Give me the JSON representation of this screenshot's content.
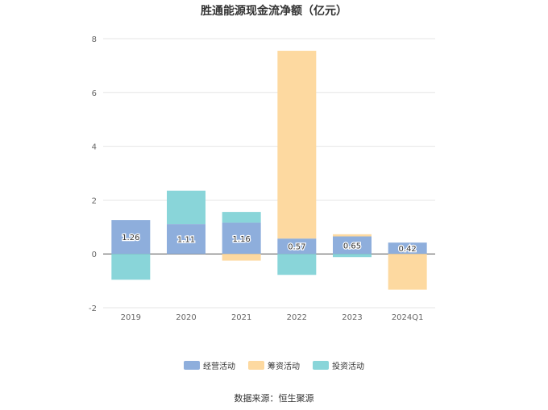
{
  "chart_data": {
    "type": "bar",
    "title": "胜通能源现金流净额（亿元）",
    "xlabel": "",
    "ylabel": "",
    "ylim": [
      -2,
      8
    ],
    "yticks": [
      -2,
      0,
      2,
      4,
      6,
      8
    ],
    "categories": [
      "2019",
      "2020",
      "2021",
      "2022",
      "2023",
      "2024Q1"
    ],
    "stacked": true,
    "grid": true,
    "legend_position": "bottom",
    "series": [
      {
        "name": "经营活动",
        "color": "#8eaedc",
        "values": [
          1.26,
          1.11,
          1.16,
          0.57,
          0.65,
          0.42
        ],
        "show_labels": true
      },
      {
        "name": "筹资活动",
        "color": "#fdd9a0",
        "values": [
          0.0,
          0.0,
          -0.25,
          6.98,
          0.08,
          -1.33
        ],
        "show_labels": false
      },
      {
        "name": "投资活动",
        "color": "#89d5d9",
        "values": [
          -0.96,
          1.24,
          0.4,
          -0.78,
          -0.12,
          0.0
        ],
        "show_labels": false
      }
    ],
    "source": "数据来源：恒生聚源"
  }
}
